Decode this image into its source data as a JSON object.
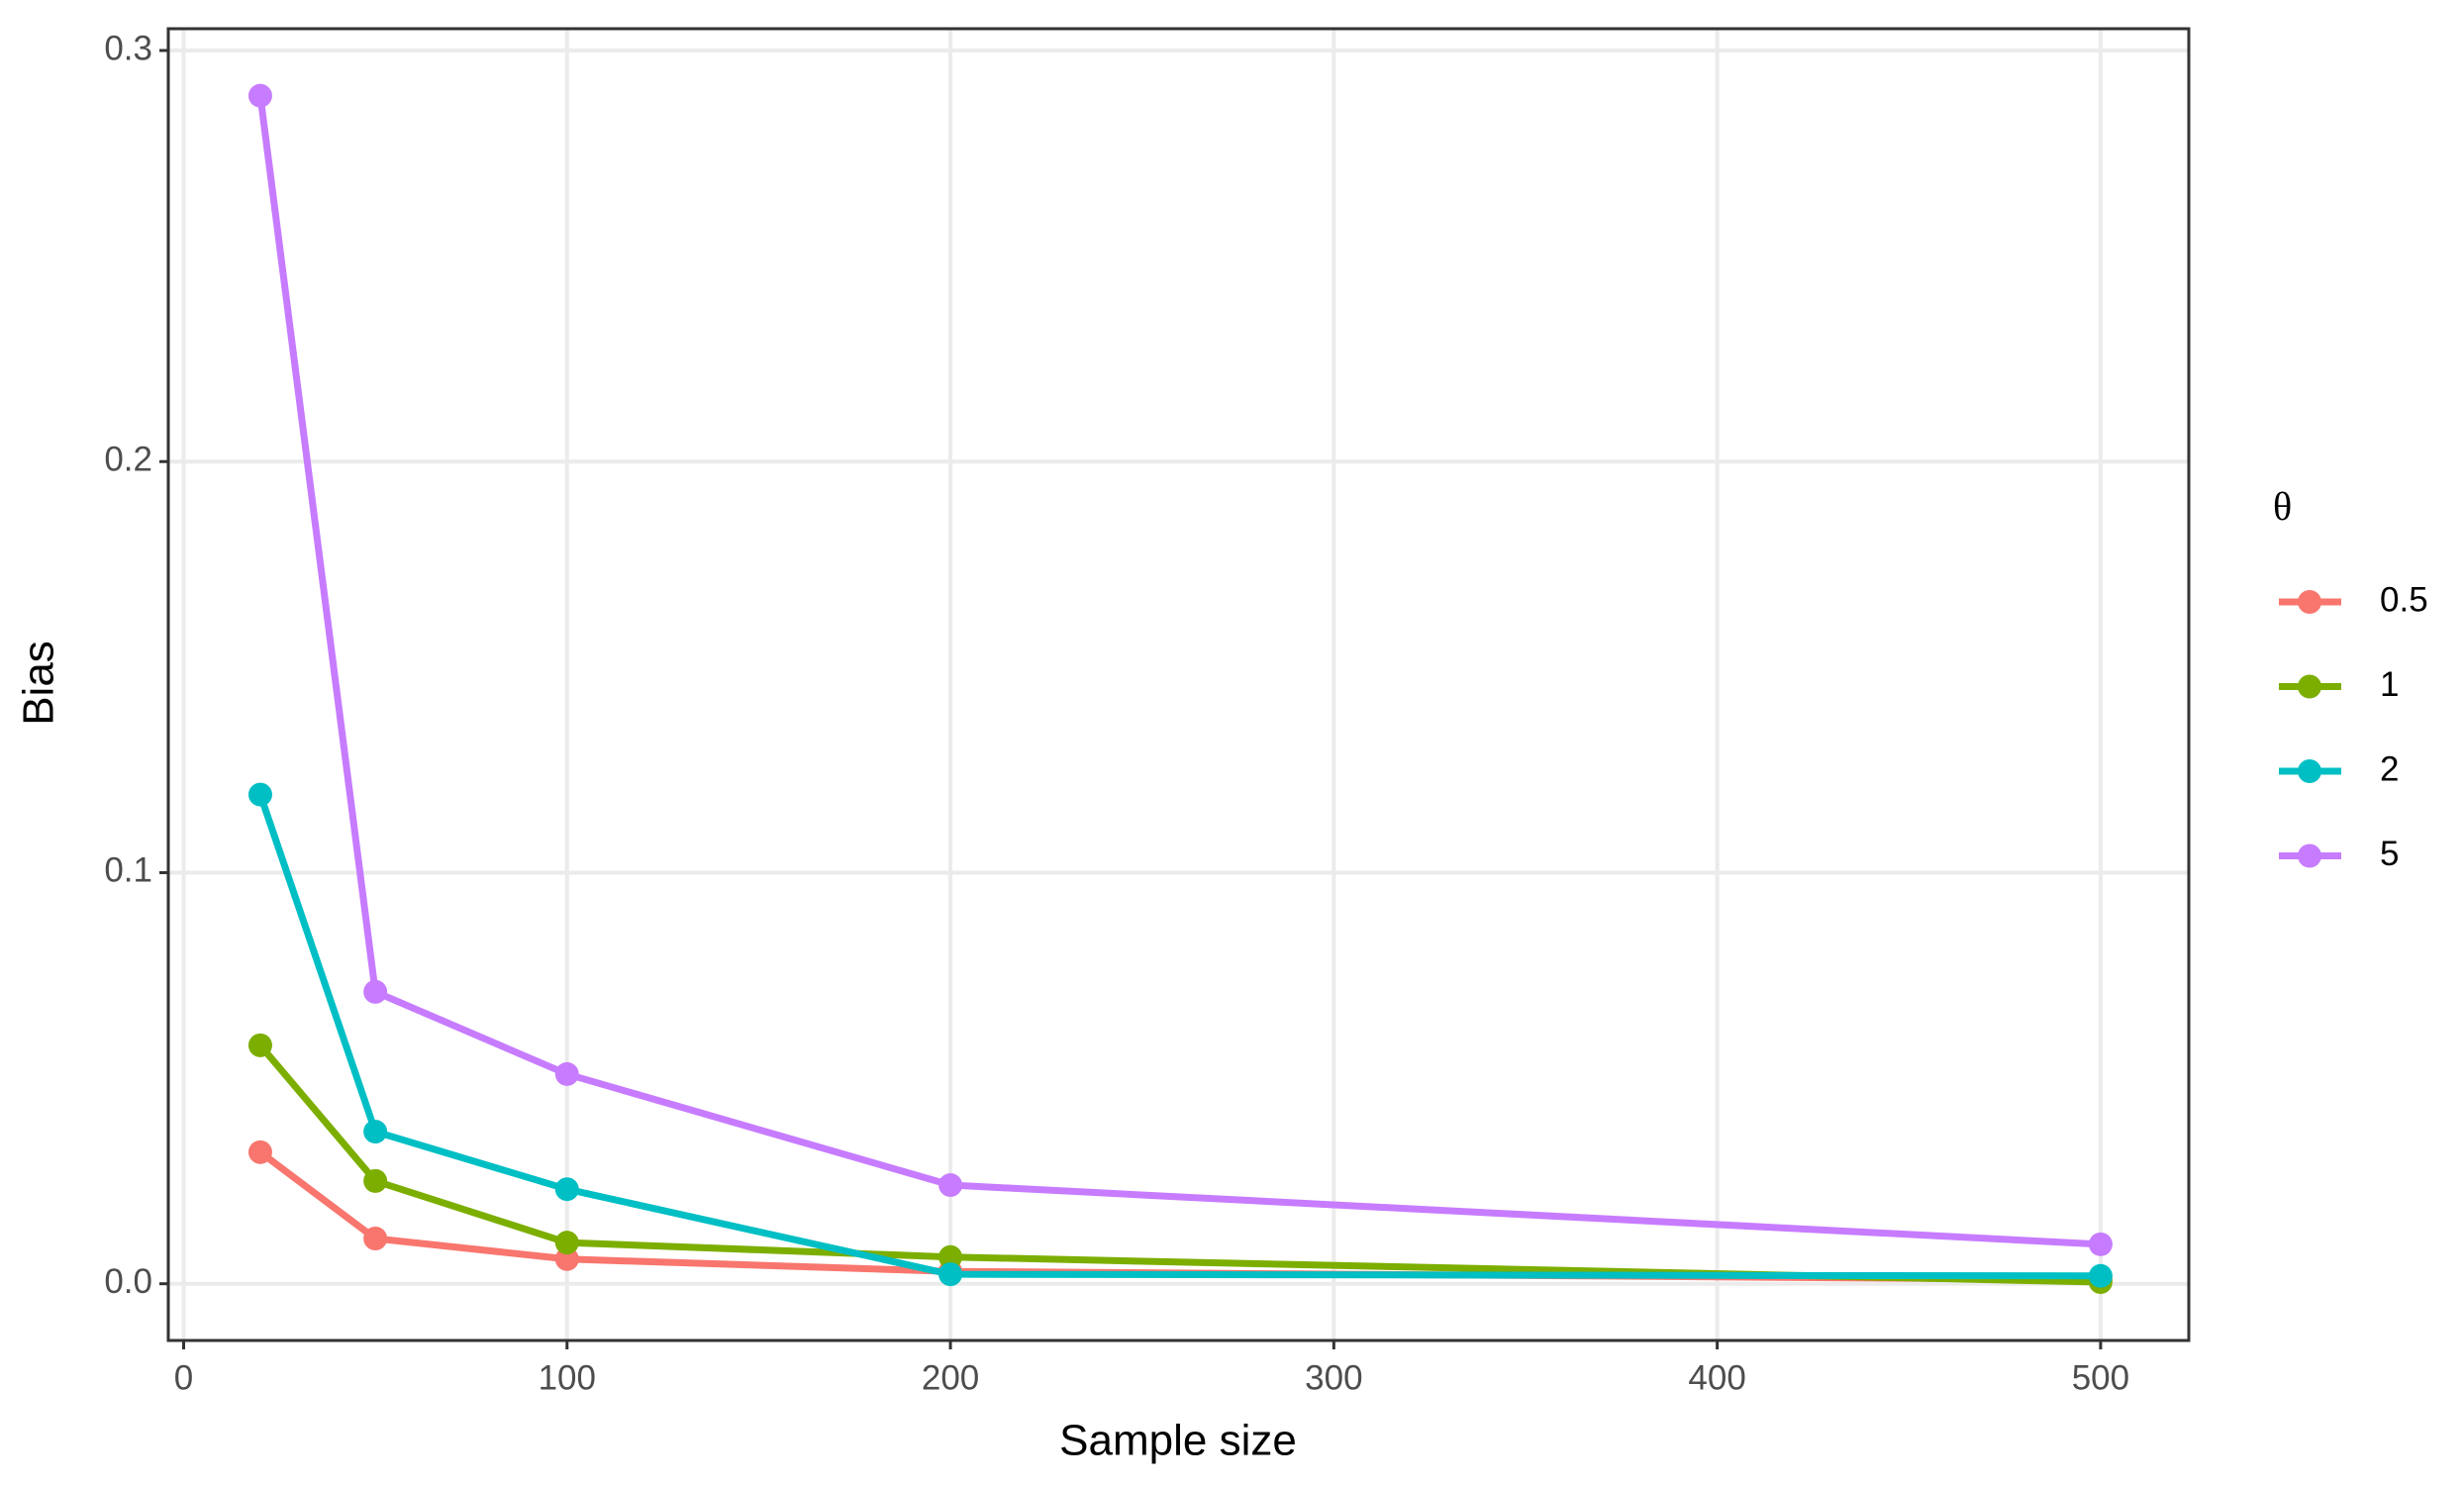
{
  "chart_data": {
    "type": "line",
    "x_label": "Sample size",
    "y_label": "Bias",
    "legend_title": "θ",
    "x": [
      20,
      50,
      100,
      200,
      500
    ],
    "series": [
      {
        "name": "0.5",
        "color": "#F8766D",
        "values": [
          0.032,
          0.011,
          0.006,
          0.003,
          0.001
        ]
      },
      {
        "name": "1",
        "color": "#7CAE00",
        "values": [
          0.058,
          0.025,
          0.01,
          0.0065,
          0.0004
        ]
      },
      {
        "name": "2",
        "color": "#00BFC4",
        "values": [
          0.119,
          0.037,
          0.023,
          0.0023,
          0.0019
        ]
      },
      {
        "name": "5",
        "color": "#C77CFF",
        "values": [
          0.289,
          0.071,
          0.051,
          0.024,
          0.0096
        ]
      }
    ],
    "xlim": [
      -4,
      523
    ],
    "ylim": [
      -0.0138,
      0.3053
    ],
    "xticks": [
      0,
      100,
      200,
      300,
      400,
      500
    ],
    "yticks": [
      {
        "value": 0,
        "label": "0.0"
      },
      {
        "value": 0.1,
        "label": "0.1"
      },
      {
        "value": 0.2,
        "label": "0.2"
      },
      {
        "value": 0.3,
        "label": "0.3"
      }
    ],
    "grid": true,
    "legend": "right"
  }
}
